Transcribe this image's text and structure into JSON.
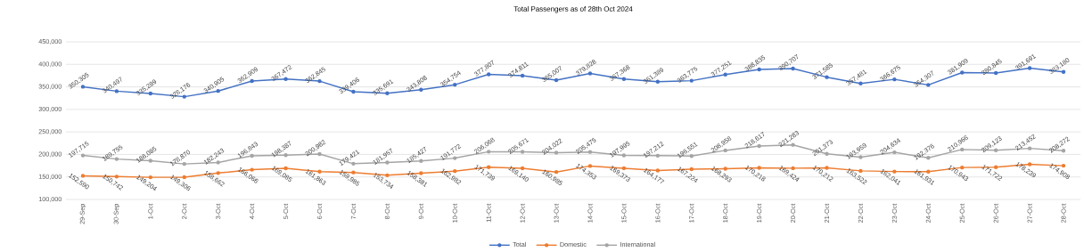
{
  "chart_data": {
    "type": "line",
    "title": "Total Passengers as of 28th Oct 2024",
    "categories": [
      "29-Sep",
      "30-Sep",
      "1-Oct",
      "2-Oct",
      "3-Oct",
      "4-Oct",
      "5-Oct",
      "6-Oct",
      "7-Oct",
      "8-Oct",
      "9-Oct",
      "10-Oct",
      "11-Oct",
      "12-Oct",
      "13-Oct",
      "14-Oct",
      "15-Oct",
      "16-Oct",
      "17-Oct",
      "18-Oct",
      "19-Oct",
      "20-Oct",
      "21-Oct",
      "22-Oct",
      "23-Oct",
      "24-Oct",
      "25-Oct",
      "26-Oct",
      "27-Oct",
      "28-Oct"
    ],
    "series": [
      {
        "name": "Total",
        "color": "#4472c4",
        "values": [
          350305,
          340497,
          335289,
          328176,
          340905,
          362909,
          367472,
          362845,
          339406,
          335691,
          343808,
          354754,
          377807,
          374811,
          365007,
          379828,
          367368,
          361389,
          363775,
          377251,
          388835,
          390707,
          371585,
          357481,
          366675,
          354307,
          381909,
          380845,
          391691,
          383180
        ],
        "value_labels": [
          "350,305",
          "340,497",
          "335,289",
          "328,176",
          "340,905",
          "362,909",
          "367,472",
          "362,845",
          "339,406",
          "335,691",
          "343,808",
          "354,754",
          "377,807",
          "374,811",
          "365,007",
          "379,828",
          "367,368",
          "361,389",
          "363,775",
          "377,251",
          "388,835",
          "390,707",
          "371,585",
          "357,481",
          "366,675",
          "354,307",
          "381,909",
          "380,845",
          "391,691",
          "383,180"
        ]
      },
      {
        "name": "Domestic",
        "color": "#ed7d31",
        "values": [
          152590,
          150742,
          149204,
          149306,
          158662,
          166066,
          169085,
          161863,
          159985,
          153734,
          158381,
          162982,
          171739,
          169140,
          160985,
          174353,
          169373,
          164177,
          167224,
          168293,
          170218,
          169424,
          170212,
          163522,
          162041,
          161931,
          170943,
          171722,
          178239,
          174908
        ],
        "value_labels": [
          "152,590",
          "150,742",
          "149,204",
          "149,306",
          "158,662",
          "166,066",
          "169,085",
          "161,863",
          "159,985",
          "153,734",
          "158,381",
          "162,982",
          "171,739",
          "169,140",
          "160,985",
          "174,353",
          "169,373",
          "164,177",
          "167,224",
          "168,293",
          "170,218",
          "169,424",
          "170,212",
          "163,522",
          "162,041",
          "161,931",
          "170,943",
          "171,722",
          "178,239",
          "174,908"
        ]
      },
      {
        "name": "International",
        "color": "#a5a5a5",
        "values": [
          197715,
          189755,
          186085,
          178870,
          182243,
          196843,
          198387,
          200982,
          179421,
          181957,
          185427,
          191772,
          206068,
          205671,
          204022,
          205475,
          197995,
          197212,
          196551,
          208958,
          218617,
          221283,
          201373,
          193959,
          204634,
          192376,
          210966,
          209123,
          213452,
          208272
        ],
        "value_labels": [
          "197,715",
          "189,755",
          "186,085",
          "178,870",
          "182,243",
          "196,843",
          "198,387",
          "200,982",
          "179,421",
          "181,957",
          "185,427",
          "191,772",
          "206,068",
          "205,671",
          "204,022",
          "205,475",
          "197,995",
          "197,212",
          "196,551",
          "208,958",
          "218,617",
          "221,283",
          "201,373",
          "193,959",
          "204,634",
          "192,376",
          "210,966",
          "209,123",
          "213,452",
          "208,272"
        ]
      }
    ],
    "ylim": [
      100000,
      450000
    ],
    "yticks": [
      {
        "value": 100000,
        "label": "100,000"
      },
      {
        "value": 150000,
        "label": "150,000"
      },
      {
        "value": 200000,
        "label": "200,000"
      },
      {
        "value": 250000,
        "label": "250,000"
      },
      {
        "value": 300000,
        "label": "300,000"
      },
      {
        "value": 350000,
        "label": "350,000"
      },
      {
        "value": 400000,
        "label": "400,000"
      },
      {
        "value": 450000,
        "label": "450,000"
      }
    ],
    "grid": "y",
    "legend": "bottom",
    "marker": "circle",
    "line_style": "solid"
  }
}
